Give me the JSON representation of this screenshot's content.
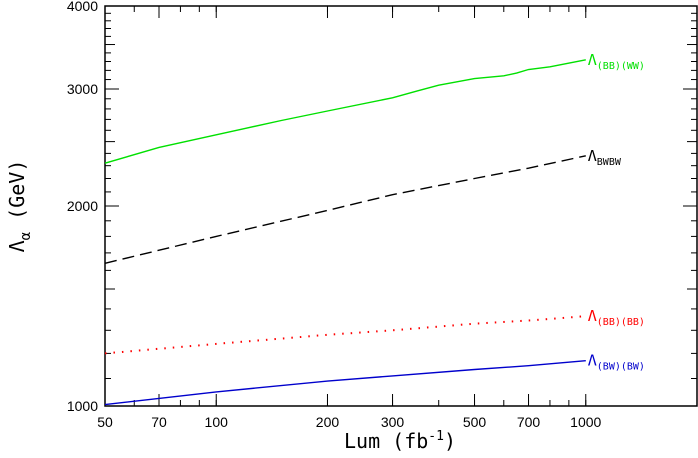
{
  "chart_data": {
    "type": "line",
    "xlabel": "Lum (fb",
    "xlabel_sup": "-1",
    "xlabel_close": ")",
    "ylabel": "Λ",
    "ylabel_sub": "α",
    "ylabel_unit": " (GeV)",
    "x_scale": "log",
    "y_scale": "log",
    "xlim": [
      50,
      2000
    ],
    "ylim": [
      1000,
      4000
    ],
    "x_ticks": [
      {
        "value": 50,
        "label": "50"
      },
      {
        "value": 70,
        "label": "70"
      },
      {
        "value": 100,
        "label": "100"
      },
      {
        "value": 200,
        "label": "200"
      },
      {
        "value": 300,
        "label": "300"
      },
      {
        "value": 500,
        "label": "500"
      },
      {
        "value": 700,
        "label": "700"
      },
      {
        "value": 1000,
        "label": "1000"
      }
    ],
    "y_ticks": [
      {
        "value": 1000,
        "label": "1000"
      },
      {
        "value": 2000,
        "label": "2000"
      },
      {
        "value": 3000,
        "label": "3000"
      },
      {
        "value": 4000,
        "label": "4000"
      }
    ],
    "grid": false,
    "series": [
      {
        "label_main": "Λ",
        "label_sub": "(BB)(WW)",
        "color": "#00e000",
        "style": "solid",
        "x": [
          50,
          70,
          100,
          150,
          200,
          300,
          350,
          400,
          500,
          600,
          650,
          700,
          800,
          1000
        ],
        "y": [
          2320,
          2450,
          2560,
          2690,
          2780,
          2910,
          2980,
          3040,
          3110,
          3140,
          3170,
          3210,
          3240,
          3320
        ]
      },
      {
        "label_main": "Λ",
        "label_sub": "BWBW",
        "color": "#000000",
        "style": "dashed",
        "x": [
          50,
          100,
          200,
          300,
          500,
          700,
          1000
        ],
        "y": [
          1640,
          1800,
          1970,
          2080,
          2200,
          2280,
          2380
        ]
      },
      {
        "label_main": "Λ",
        "label_sub": "(BB)(BB)",
        "color": "#ff0000",
        "style": "dotted",
        "x": [
          50,
          100,
          200,
          300,
          500,
          700,
          1000
        ],
        "y": [
          1200,
          1240,
          1280,
          1300,
          1330,
          1345,
          1365
        ]
      },
      {
        "label_main": "Λ",
        "label_sub": "(BW)(BW)",
        "color": "#0000cc",
        "style": "solid",
        "x": [
          50,
          100,
          200,
          300,
          500,
          700,
          1000
        ],
        "y": [
          1005,
          1050,
          1090,
          1110,
          1135,
          1150,
          1170
        ]
      }
    ]
  }
}
